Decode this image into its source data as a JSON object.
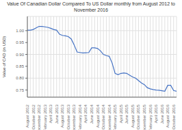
{
  "chart_data": {
    "type": "line",
    "title": "Value Of Canadian Dollar Compared To US Dollar monthly from August 2012 to November 2016",
    "y_label": "Value of CAD (in USD)",
    "color": "#4472C4",
    "grid": true,
    "ylim": [
      0.72,
      1.06
    ],
    "yticks": [
      0.75,
      {
        "value": 0.8,
        "label": "0.80"
      },
      0.85,
      {
        "value": 0.9,
        "label": "0.90"
      },
      0.95,
      {
        "value": 1,
        "label": "1.00"
      }
    ],
    "categories": [
      "August 2012",
      null,
      "October 2012",
      null,
      "December 2012",
      null,
      "February 2013",
      null,
      "April 2013",
      null,
      "June 2013",
      null,
      "August 2013",
      null,
      "October 2013",
      null,
      "December 2013",
      null,
      "February 2014",
      null,
      "April 2014",
      null,
      "June 2014",
      null,
      "August 2014",
      null,
      "October 2014",
      null,
      "December 2014",
      null,
      "February 2015",
      null,
      "April 2015",
      null,
      "June 2015",
      null,
      "August 2015",
      null,
      "October 2015",
      null,
      "December 2015",
      null,
      "February 2016",
      null,
      "April 2016",
      null,
      "June 2016",
      null,
      "August 2016",
      null,
      "October 2016",
      null
    ],
    "values": [
      1.002,
      1.002,
      1.005,
      1.012,
      1.018,
      1.018,
      1.016,
      1.014,
      1.01,
      1.005,
      1.002,
      0.985,
      0.98,
      0.978,
      0.975,
      0.965,
      0.94,
      0.91,
      0.908,
      0.906,
      0.907,
      0.908,
      0.928,
      0.928,
      0.925,
      0.915,
      0.9,
      0.895,
      0.892,
      0.863,
      0.82,
      0.815,
      0.82,
      0.822,
      0.82,
      0.812,
      0.805,
      0.8,
      0.79,
      0.78,
      0.773,
      0.76,
      0.755,
      0.752,
      0.75,
      0.749,
      0.747,
      0.745,
      0.77,
      0.77,
      0.748,
      0.745
    ]
  }
}
